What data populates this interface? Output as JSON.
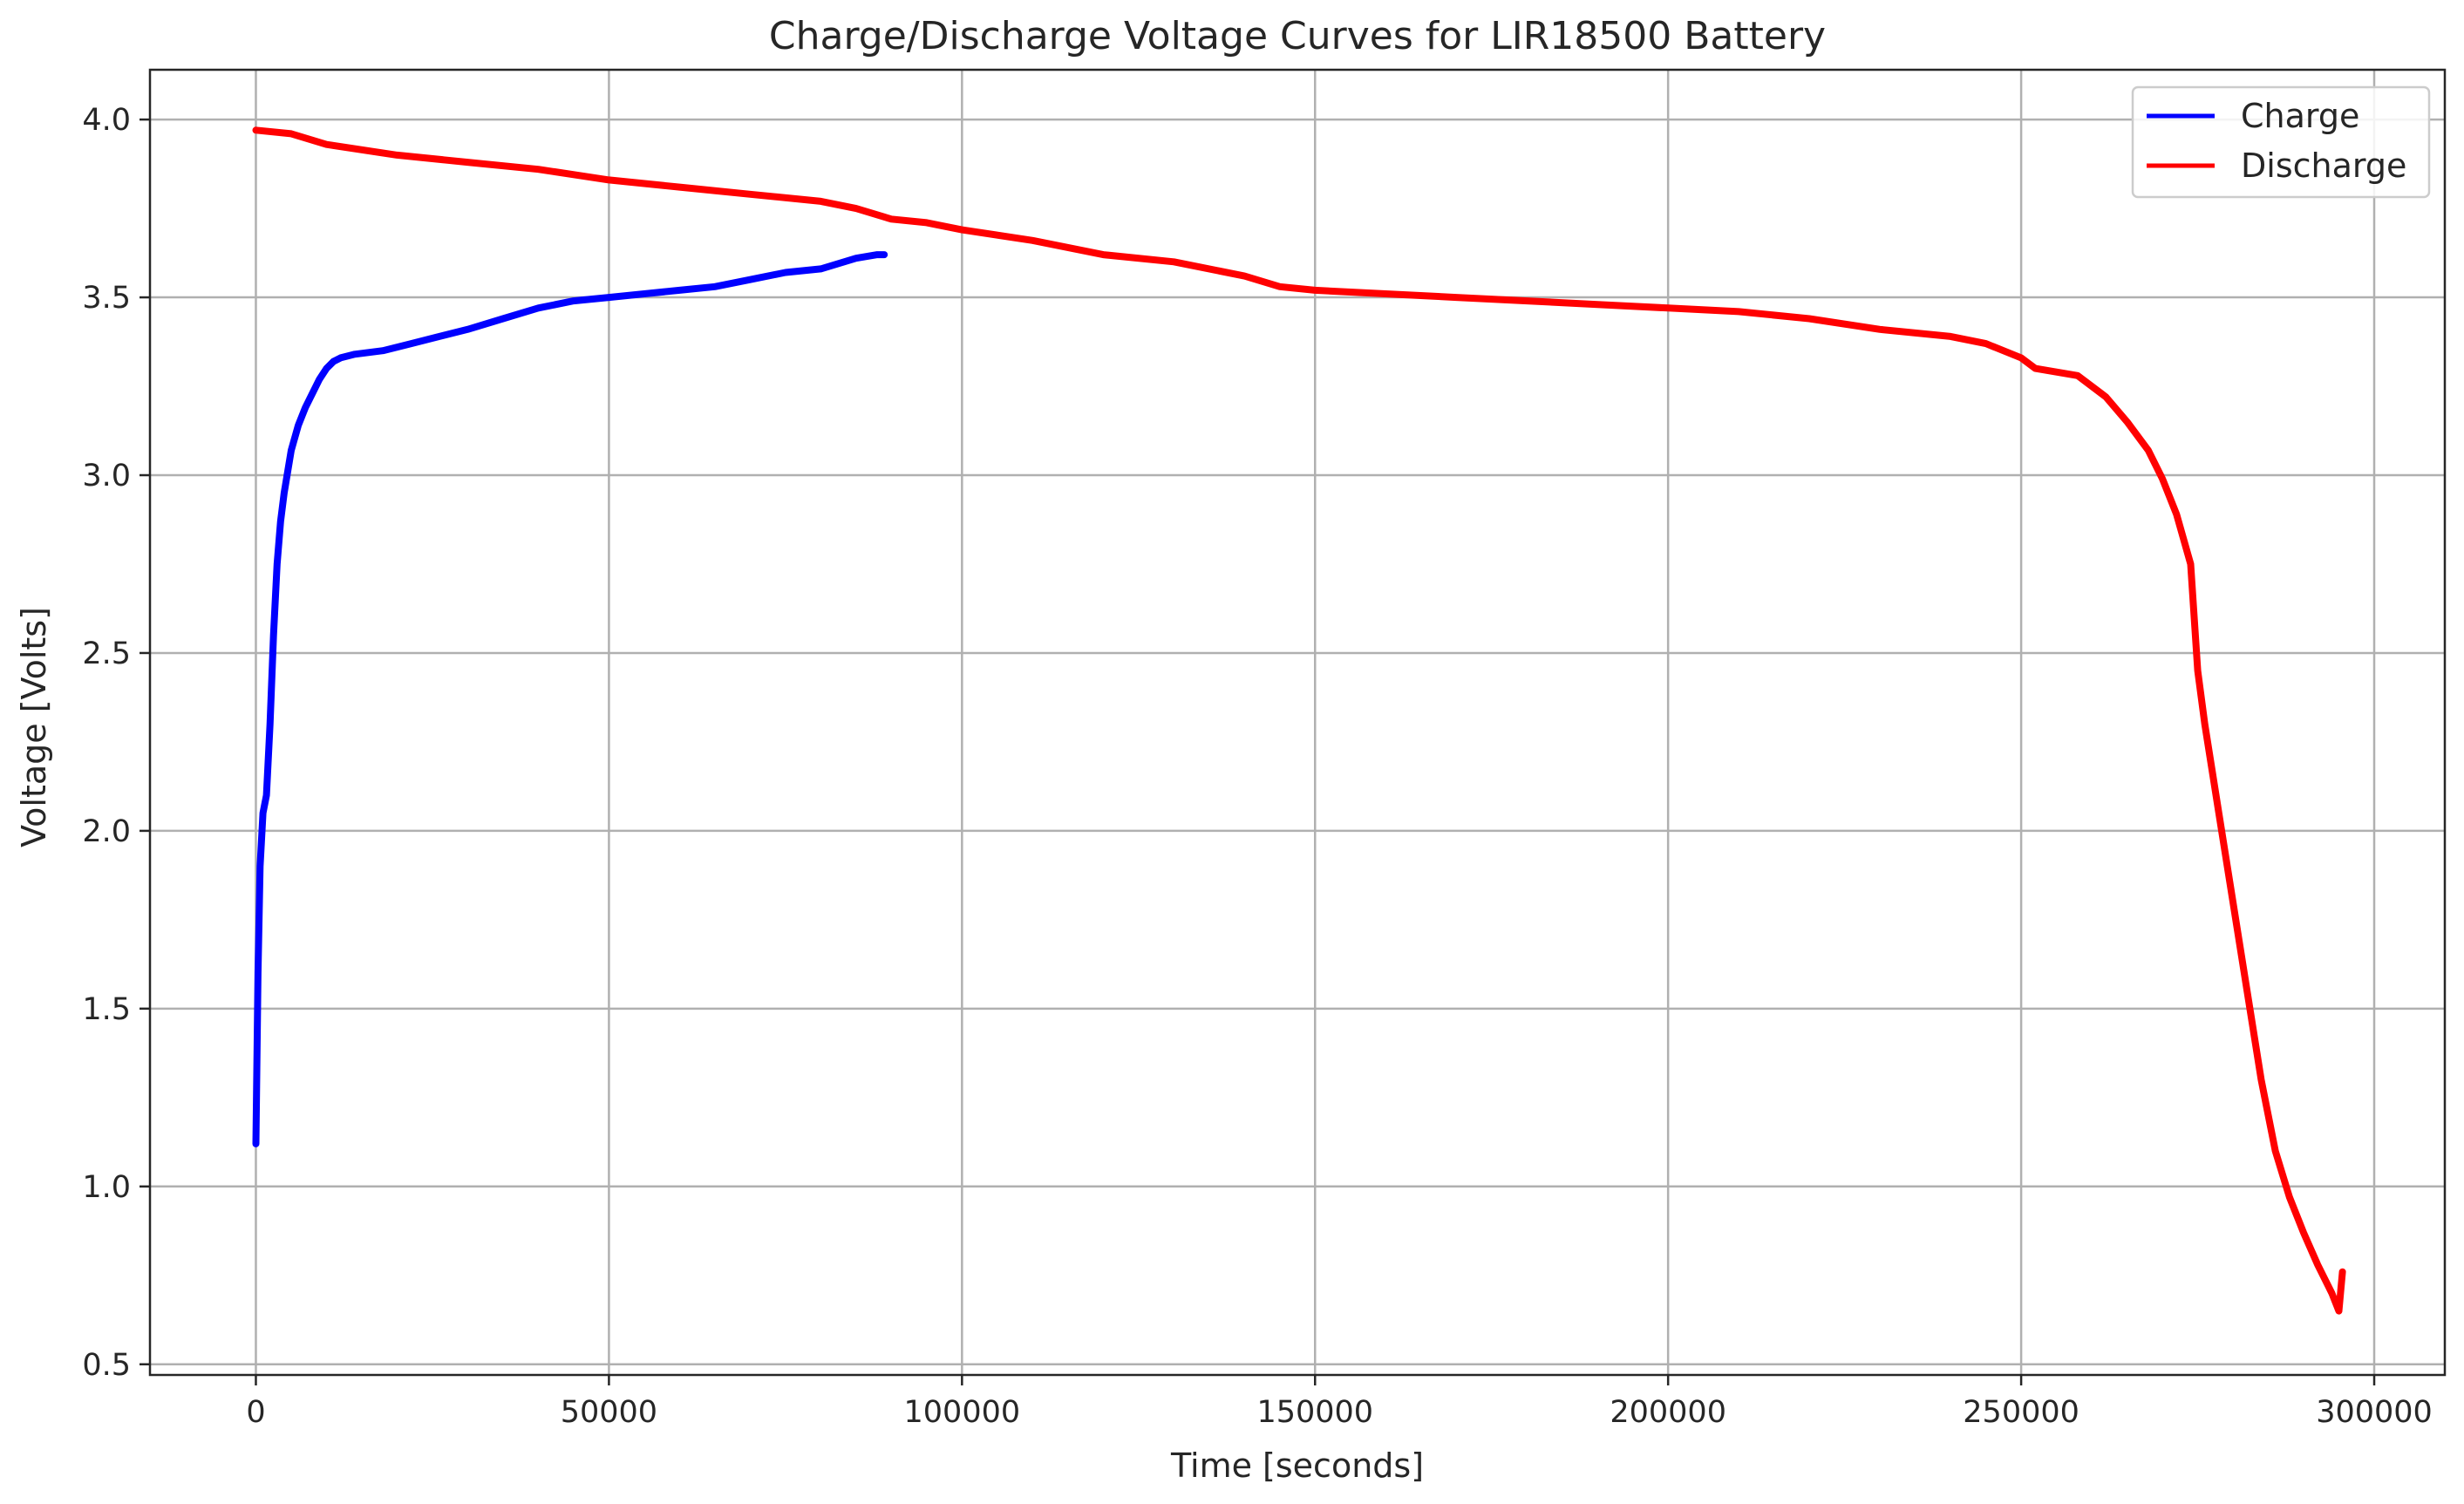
{
  "chart_data": {
    "type": "line",
    "title": "Charge/Discharge Voltage Curves for LIR18500 Battery",
    "xlabel": "Time [seconds]",
    "ylabel": "Voltage [Volts]",
    "xlim": [
      -15000,
      310000
    ],
    "ylim": [
      0.47,
      4.14
    ],
    "xticks": [
      0,
      50000,
      100000,
      150000,
      200000,
      250000,
      300000
    ],
    "xtick_labels": [
      "0",
      "50000",
      "100000",
      "150000",
      "200000",
      "250000",
      "300000"
    ],
    "yticks": [
      0.5,
      1.0,
      1.5,
      2.0,
      2.5,
      3.0,
      3.5,
      4.0
    ],
    "ytick_labels": [
      "0.5",
      "1.0",
      "1.5",
      "2.0",
      "2.5",
      "3.0",
      "3.5",
      "4.0"
    ],
    "grid": true,
    "legend_position": "top-right",
    "series": [
      {
        "name": "Charge",
        "color": "#0000ff",
        "x": [
          0,
          300,
          600,
          1000,
          1500,
          2000,
          2500,
          3000,
          3500,
          4000,
          5000,
          6000,
          7000,
          8000,
          9000,
          10000,
          11000,
          12000,
          14000,
          18000,
          22000,
          26000,
          30000,
          35000,
          40000,
          45000,
          50000,
          55000,
          60000,
          65000,
          70000,
          75000,
          80000,
          85000,
          88000,
          89000
        ],
        "y": [
          1.12,
          1.6,
          1.9,
          2.05,
          2.1,
          2.3,
          2.55,
          2.75,
          2.87,
          2.95,
          3.07,
          3.14,
          3.19,
          3.23,
          3.27,
          3.3,
          3.32,
          3.33,
          3.34,
          3.35,
          3.37,
          3.39,
          3.41,
          3.44,
          3.47,
          3.49,
          3.5,
          3.51,
          3.52,
          3.53,
          3.55,
          3.57,
          3.58,
          3.61,
          3.62,
          3.62
        ]
      },
      {
        "name": "Discharge",
        "color": "#ff0000",
        "x": [
          0,
          5000,
          10000,
          20000,
          30000,
          40000,
          50000,
          60000,
          70000,
          80000,
          85000,
          90000,
          95000,
          100000,
          110000,
          120000,
          130000,
          140000,
          145000,
          150000,
          160000,
          170000,
          180000,
          190000,
          200000,
          210000,
          220000,
          230000,
          240000,
          245000,
          250000,
          252000,
          258000,
          262000,
          265000,
          268000,
          270000,
          272000,
          274000,
          275000,
          276000,
          278000,
          280000,
          282000,
          284000,
          286000,
          288000,
          290000,
          292000,
          294000,
          295000,
          295500
        ],
        "y": [
          3.97,
          3.96,
          3.93,
          3.9,
          3.88,
          3.86,
          3.83,
          3.81,
          3.79,
          3.77,
          3.75,
          3.72,
          3.71,
          3.69,
          3.66,
          3.62,
          3.6,
          3.56,
          3.53,
          3.52,
          3.51,
          3.5,
          3.49,
          3.48,
          3.47,
          3.46,
          3.44,
          3.41,
          3.39,
          3.37,
          3.33,
          3.3,
          3.28,
          3.22,
          3.15,
          3.07,
          2.99,
          2.89,
          2.75,
          2.45,
          2.3,
          2.05,
          1.8,
          1.55,
          1.3,
          1.1,
          0.97,
          0.87,
          0.78,
          0.7,
          0.65,
          0.76
        ]
      }
    ]
  }
}
